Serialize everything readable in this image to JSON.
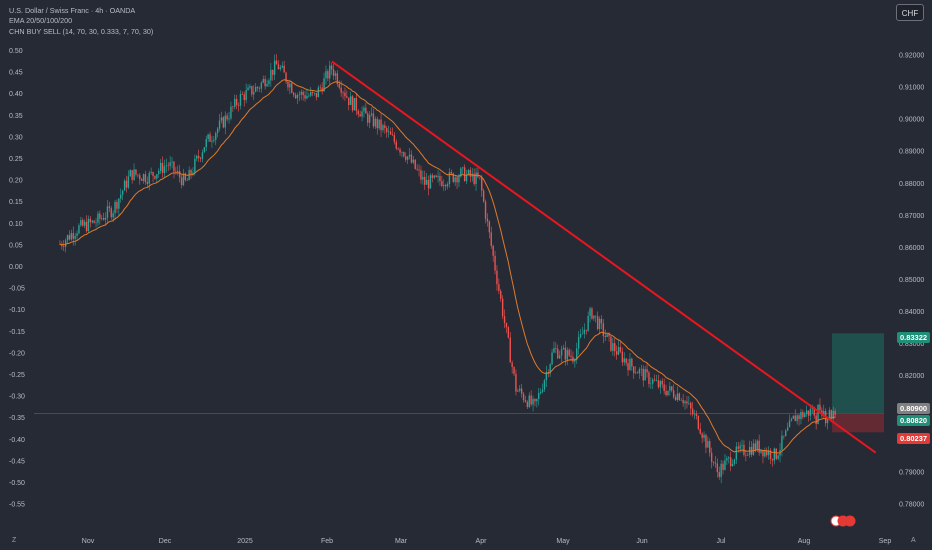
{
  "legend": {
    "title": "U.S. Dollar / Swiss Franc · 4h · OANDA",
    "ema": "EMA 20/50/100/200",
    "indicator": "CHN BUY SELL (14, 70, 30, 0.333, 7, 70, 30)"
  },
  "currency_button": "CHF",
  "corner_left": "Z",
  "corner_right": "A",
  "price_tags": {
    "target": "0.83322",
    "current": "0.80900",
    "entry": "0.80820",
    "stop": "0.80237"
  },
  "colors": {
    "background": "#262a35",
    "up_candle": "#26a69a",
    "down_candle": "#ef5350",
    "ema": "#e07a2a",
    "trendline": "#e8161f",
    "target_tag": "#1f8f78",
    "current_tag": "#808080",
    "entry_tag": "#1f8f78",
    "stop_tag": "#e53935"
  },
  "chart_data": {
    "type": "candlestick",
    "title": "U.S. Dollar / Swiss Franc · 4h · OANDA",
    "left_axis_ticks": [
      "0.50",
      "0.45",
      "0.40",
      "0.35",
      "0.30",
      "0.25",
      "0.20",
      "0.15",
      "0.10",
      "0.05",
      "0.00",
      "-0.05",
      "-0.10",
      "-0.15",
      "-0.20",
      "-0.25",
      "-0.30",
      "-0.35",
      "-0.40",
      "-0.45",
      "-0.50",
      "-0.55"
    ],
    "right_axis_ticks": [
      "0.92000",
      "0.91000",
      "0.90000",
      "0.89000",
      "0.88000",
      "0.87000",
      "0.86000",
      "0.85000",
      "0.84000",
      "0.83000",
      "0.82000",
      "0.81000",
      "0.80000",
      "0.79000",
      "0.78000"
    ],
    "right_axis_range": [
      0.7772,
      0.9228
    ],
    "x_axis_labels": [
      "Nov",
      "Dec",
      "2025",
      "Feb",
      "Mar",
      "Apr",
      "May",
      "Jun",
      "Jul",
      "Aug",
      "Sep"
    ],
    "price_path": [
      [
        "Oct 21",
        0.861
      ],
      [
        "Oct 28",
        0.866
      ],
      [
        "Nov 4",
        0.868
      ],
      [
        "Nov 11",
        0.872
      ],
      [
        "Nov 18",
        0.883
      ],
      [
        "Nov 25",
        0.882
      ],
      [
        "Dec 2",
        0.886
      ],
      [
        "Dec 9",
        0.88
      ],
      [
        "Dec 16",
        0.892
      ],
      [
        "Dec 23",
        0.899
      ],
      [
        "Dec 30",
        0.907
      ],
      [
        "Jan 6",
        0.91
      ],
      [
        "Jan 13",
        0.917
      ],
      [
        "Jan 20",
        0.908
      ],
      [
        "Jan 27",
        0.907
      ],
      [
        "Feb 3",
        0.916
      ],
      [
        "Feb 10",
        0.906
      ],
      [
        "Feb 17",
        0.901
      ],
      [
        "Feb 24",
        0.897
      ],
      [
        "Mar 3",
        0.889
      ],
      [
        "Mar 10",
        0.88
      ],
      [
        "Mar 17",
        0.881
      ],
      [
        "Mar 24",
        0.883
      ],
      [
        "Mar 31",
        0.881
      ],
      [
        "Apr 7",
        0.85
      ],
      [
        "Apr 14",
        0.816
      ],
      [
        "Apr 21",
        0.81
      ],
      [
        "Apr 28",
        0.828
      ],
      [
        "May 5",
        0.826
      ],
      [
        "May 12",
        0.84
      ],
      [
        "May 19",
        0.83
      ],
      [
        "May 26",
        0.824
      ],
      [
        "Jun 2",
        0.82
      ],
      [
        "Jun 9",
        0.816
      ],
      [
        "Jun 16",
        0.814
      ],
      [
        "Jun 23",
        0.805
      ],
      [
        "Jun 30",
        0.79
      ],
      [
        "Jul 7",
        0.796
      ],
      [
        "Jul 14",
        0.798
      ],
      [
        "Jul 21",
        0.795
      ],
      [
        "Jul 28",
        0.807
      ],
      [
        "Aug 4",
        0.809
      ]
    ],
    "trendline": [
      [
        "Feb 3",
        0.918
      ],
      [
        "Aug 28",
        0.796
      ]
    ],
    "position": {
      "target": 0.83322,
      "entry": 0.8082,
      "stop": 0.80237,
      "current": 0.809
    }
  }
}
